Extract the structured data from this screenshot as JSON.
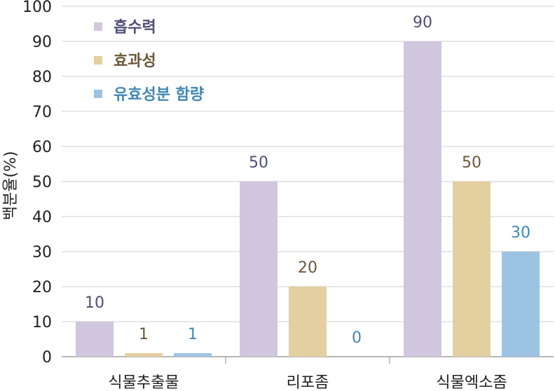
{
  "chart_data": {
    "type": "bar",
    "ylabel": "백분율(%)",
    "ylim": [
      0,
      100
    ],
    "yticks": [
      0,
      10,
      20,
      30,
      40,
      50,
      60,
      70,
      80,
      90,
      100
    ],
    "categories": [
      "식물추출물",
      "리포좀",
      "식물엑소좀"
    ],
    "grid": true,
    "legend_position": "top-left",
    "series": [
      {
        "name": "흡수력",
        "values": [
          10,
          50,
          90
        ],
        "color": "#d0c6dd",
        "label_color": "#4f4f76"
      },
      {
        "name": "효과성",
        "values": [
          1,
          20,
          50
        ],
        "color": "#e3cfa0",
        "label_color": "#6b5638"
      },
      {
        "name": "유효성분 함량",
        "values": [
          1,
          0,
          30
        ],
        "color": "#9dc3e2",
        "label_color": "#3f87b5"
      }
    ]
  }
}
